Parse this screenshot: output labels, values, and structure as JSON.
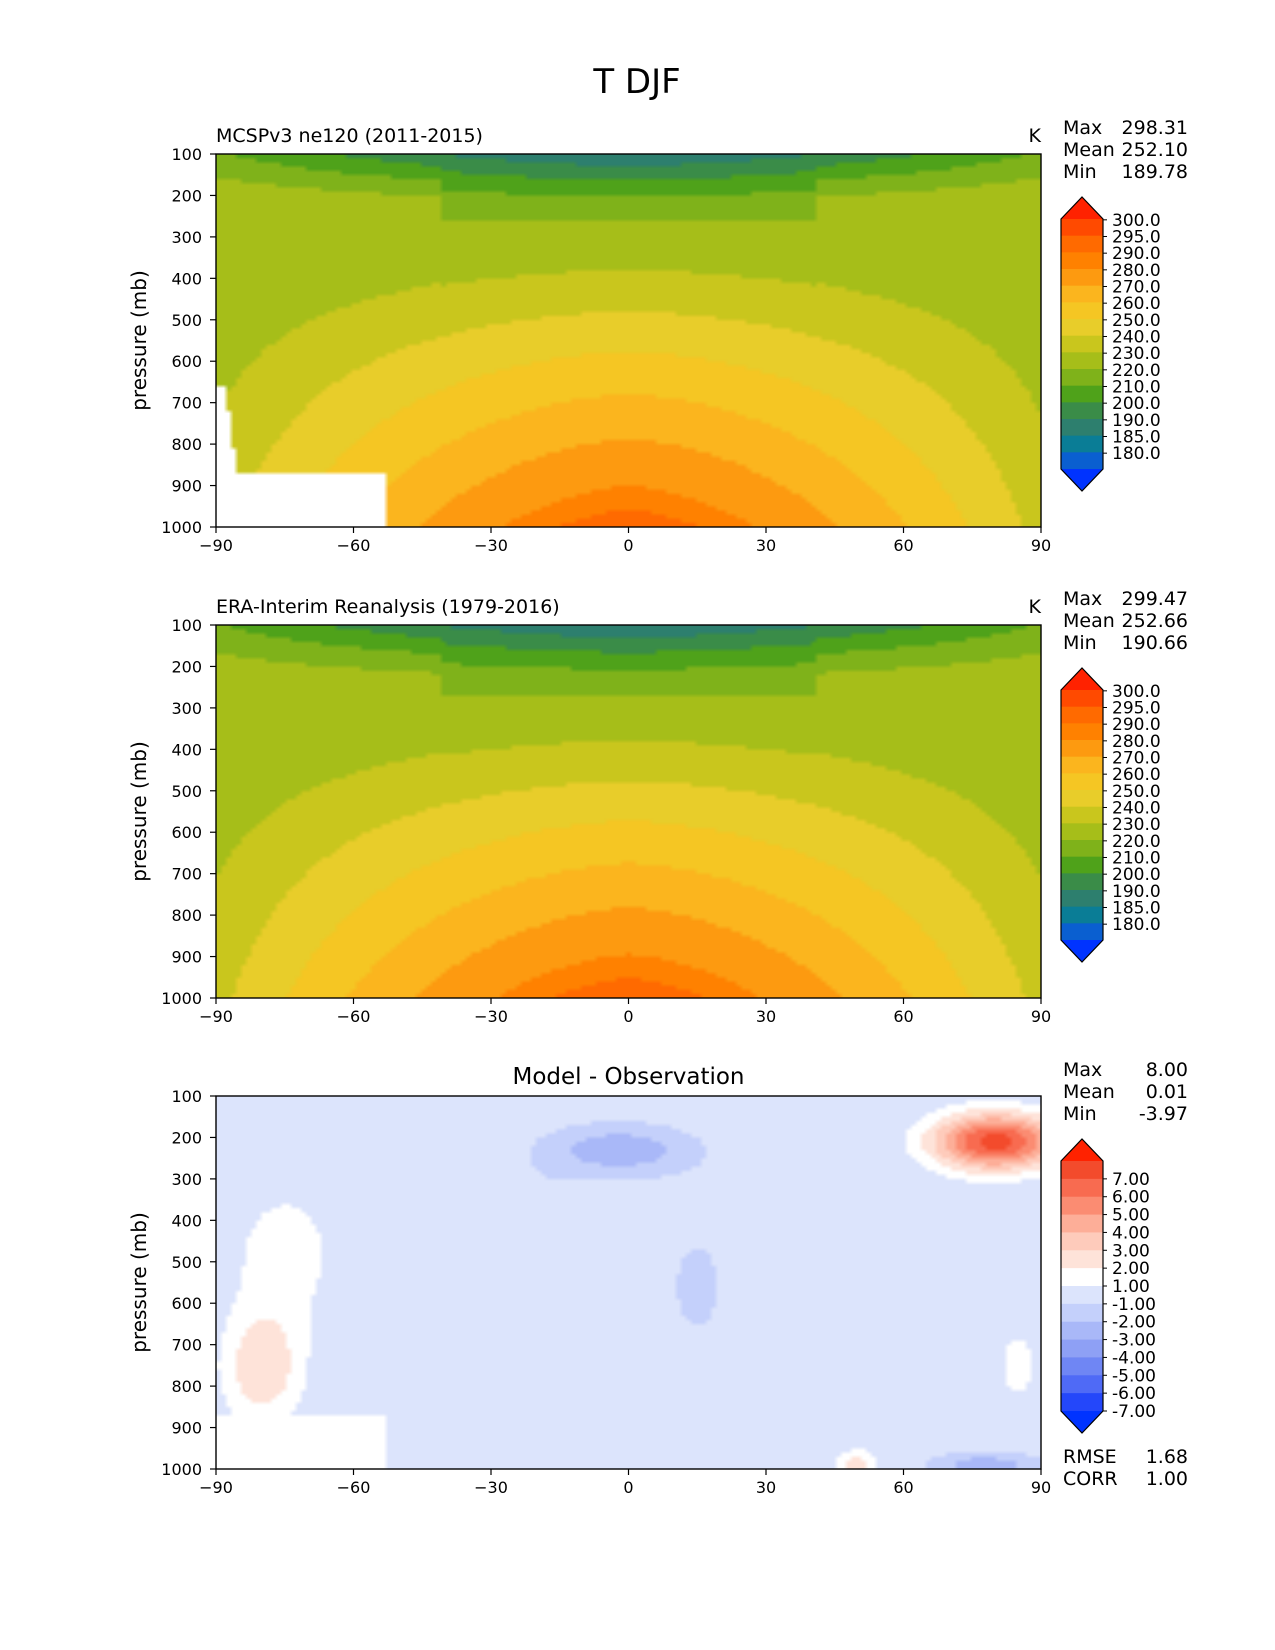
{
  "figure": {
    "title": "T DJF"
  },
  "chart_data": [
    {
      "type": "heatmap",
      "title": "MCSPv3 ne120 (2011-2015)",
      "units": "K",
      "ylabel": "pressure (mb)",
      "xlabel": "",
      "xlim": [
        -90,
        90
      ],
      "ylim": [
        1000,
        100
      ],
      "xticks": [
        "−90",
        "−60",
        "−30",
        "0",
        "30",
        "60",
        "90"
      ],
      "yticks": [
        "100",
        "200",
        "300",
        "400",
        "500",
        "600",
        "700",
        "800",
        "900",
        "1000"
      ],
      "stats": [
        {
          "label": "Max",
          "value": "298.31"
        },
        {
          "label": "Mean",
          "value": "252.10"
        },
        {
          "label": "Min",
          "value": "189.78"
        }
      ],
      "colorbar": {
        "labels": [
          "300.0",
          "295.0",
          "290.0",
          "280.0",
          "270.0",
          "260.0",
          "250.0",
          "240.0",
          "230.0",
          "220.0",
          "210.0",
          "200.0",
          "190.0",
          "185.0",
          "180.0"
        ],
        "colors": [
          "#ff2200",
          "#ff4a00",
          "#ff6a00",
          "#ff8100",
          "#fd9a10",
          "#fbb51e",
          "#f5c623",
          "#e8cd2a",
          "#c9c61d",
          "#a6be19",
          "#7fb21a",
          "#4fa21a",
          "#3a8c48",
          "#2d7f6e",
          "#0a7d96",
          "#0a5fd0",
          "#0033ff"
        ]
      }
    },
    {
      "type": "heatmap",
      "title": "ERA-Interim Reanalysis (1979-2016)",
      "units": "K",
      "ylabel": "pressure (mb)",
      "xlabel": "",
      "xlim": [
        -90,
        90
      ],
      "ylim": [
        1000,
        100
      ],
      "xticks": [
        "−90",
        "−60",
        "−30",
        "0",
        "30",
        "60",
        "90"
      ],
      "yticks": [
        "100",
        "200",
        "300",
        "400",
        "500",
        "600",
        "700",
        "800",
        "900",
        "1000"
      ],
      "stats": [
        {
          "label": "Max",
          "value": "299.47"
        },
        {
          "label": "Mean",
          "value": "252.66"
        },
        {
          "label": "Min",
          "value": "190.66"
        }
      ],
      "colorbar": {
        "labels": [
          "300.0",
          "295.0",
          "290.0",
          "280.0",
          "270.0",
          "260.0",
          "250.0",
          "240.0",
          "230.0",
          "220.0",
          "210.0",
          "200.0",
          "190.0",
          "185.0",
          "180.0"
        ],
        "colors": [
          "#ff2200",
          "#ff4a00",
          "#ff6a00",
          "#ff8100",
          "#fd9a10",
          "#fbb51e",
          "#f5c623",
          "#e8cd2a",
          "#c9c61d",
          "#a6be19",
          "#7fb21a",
          "#4fa21a",
          "#3a8c48",
          "#2d7f6e",
          "#0a7d96",
          "#0a5fd0",
          "#0033ff"
        ]
      }
    },
    {
      "type": "heatmap",
      "title": "Model - Observation",
      "units": "",
      "ylabel": "pressure (mb)",
      "xlabel": "",
      "xlim": [
        -90,
        90
      ],
      "ylim": [
        1000,
        100
      ],
      "xticks": [
        "−90",
        "−60",
        "−30",
        "0",
        "30",
        "60",
        "90"
      ],
      "yticks": [
        "100",
        "200",
        "300",
        "400",
        "500",
        "600",
        "700",
        "800",
        "900",
        "1000"
      ],
      "stats": [
        {
          "label": "Max",
          "value": "8.00"
        },
        {
          "label": "Mean",
          "value": "0.01"
        },
        {
          "label": "Min",
          "value": "-3.97"
        }
      ],
      "extra_stats": [
        {
          "label": "RMSE",
          "value": "1.68"
        },
        {
          "label": "CORR",
          "value": "1.00"
        }
      ],
      "colorbar": {
        "labels": [
          "7.00",
          "6.00",
          "5.00",
          "4.00",
          "3.00",
          "2.00",
          "1.00",
          "-1.00",
          "-2.00",
          "-3.00",
          "-4.00",
          "-5.00",
          "-6.00",
          "-7.00"
        ],
        "colors": [
          "#ff2200",
          "#f34b2c",
          "#f86b50",
          "#fb8c72",
          "#fdae98",
          "#fecbbb",
          "#fee3d9",
          "#ffffff",
          "#dce4fc",
          "#c4d0fb",
          "#a9b8f8",
          "#8ea0f5",
          "#6f86f4",
          "#4f6af6",
          "#2447fa",
          "#0033ff"
        ]
      }
    }
  ]
}
